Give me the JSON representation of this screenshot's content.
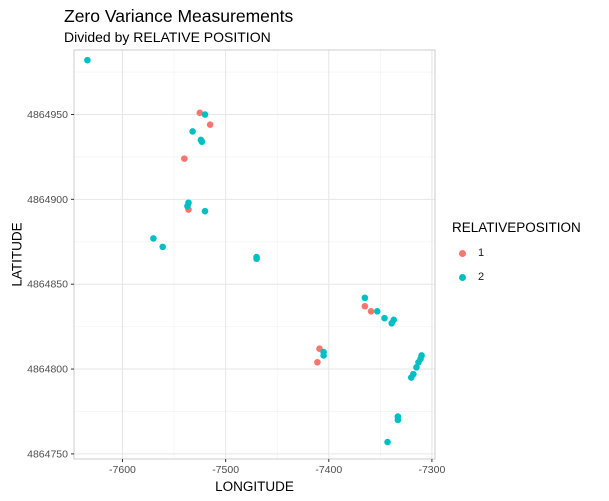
{
  "chart_data": {
    "type": "scatter",
    "title": "Zero Variance Measurements",
    "subtitle": "Divided by RELATIVE POSITION",
    "xlabel": "LONGITUDE",
    "ylabel": "LATITUDE",
    "xlim": [
      -7647,
      -7297
    ],
    "ylim": [
      4864747,
      4864988
    ],
    "x_ticks": [
      -7600,
      -7500,
      -7400,
      -7300
    ],
    "x_tick_labels": [
      "-7600",
      "-7500",
      "-7400",
      "-7300"
    ],
    "y_ticks": [
      4864750,
      4864800,
      4864850,
      4864900,
      4864950
    ],
    "y_tick_labels": [
      "4864750",
      "4864800",
      "4864850",
      "4864900",
      "4864950"
    ],
    "grid": true,
    "legend_title": "RELATIVEPOSITION",
    "legend_position": "right",
    "series": [
      {
        "name": "1",
        "color": "#F8766D",
        "points": [
          [
            -7525,
            4864951
          ],
          [
            -7515,
            4864944
          ],
          [
            -7540,
            4864924
          ],
          [
            -7536,
            4864894
          ],
          [
            -7365,
            4864837
          ],
          [
            -7359,
            4864834
          ],
          [
            -7409,
            4864812
          ],
          [
            -7411,
            4864804
          ]
        ]
      },
      {
        "name": "2",
        "color": "#00BFC4",
        "points": [
          [
            -7634,
            4864982
          ],
          [
            -7520,
            4864950
          ],
          [
            -7532,
            4864940
          ],
          [
            -7524,
            4864935
          ],
          [
            -7523,
            4864934
          ],
          [
            -7536,
            4864898
          ],
          [
            -7537,
            4864896
          ],
          [
            -7520,
            4864893
          ],
          [
            -7570,
            4864877
          ],
          [
            -7561,
            4864872
          ],
          [
            -7470,
            4864866
          ],
          [
            -7470,
            4864865
          ],
          [
            -7365,
            4864842
          ],
          [
            -7353,
            4864834
          ],
          [
            -7346,
            4864830
          ],
          [
            -7339,
            4864827
          ],
          [
            -7337,
            4864829
          ],
          [
            -7405,
            4864810
          ],
          [
            -7405,
            4864808
          ],
          [
            -7310,
            4864808
          ],
          [
            -7311,
            4864806
          ],
          [
            -7313,
            4864804
          ],
          [
            -7315,
            4864801
          ],
          [
            -7318,
            4864797
          ],
          [
            -7320,
            4864795
          ],
          [
            -7333,
            4864772
          ],
          [
            -7333,
            4864770
          ],
          [
            -7343,
            4864757
          ]
        ]
      }
    ]
  }
}
